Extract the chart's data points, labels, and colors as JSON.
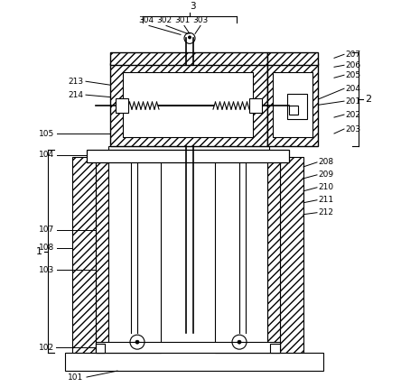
{
  "bg_color": "#ffffff",
  "line_color": "#000000",
  "figsize": [
    4.44,
    4.29
  ],
  "dpi": 100
}
